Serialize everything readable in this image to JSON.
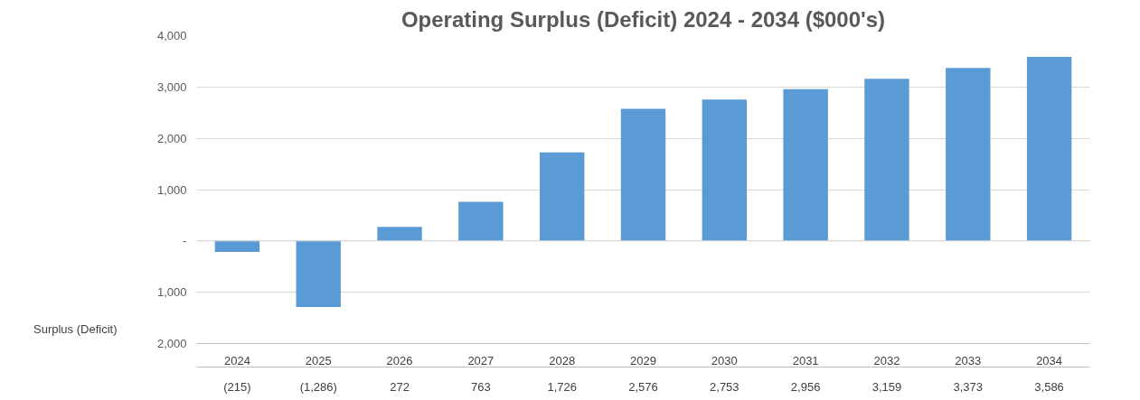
{
  "chart_data": {
    "type": "bar",
    "title": "Operating Surplus (Deficit) 2024 - 2034 ($000's)",
    "categories": [
      "2024",
      "2025",
      "2026",
      "2027",
      "2028",
      "2029",
      "2030",
      "2031",
      "2032",
      "2033",
      "2034"
    ],
    "series": [
      {
        "name": "Surplus (Deficit)",
        "color": "#5b9bd5",
        "values": [
          -215,
          -1286,
          272,
          763,
          1726,
          2576,
          2753,
          2956,
          3159,
          3373,
          3586
        ],
        "value_labels": [
          "(215)",
          "(1,286)",
          "272",
          "763",
          "1,726",
          "2,576",
          "2,753",
          "2,956",
          "3,159",
          "3,373",
          "3,586"
        ]
      }
    ],
    "ylim": [
      -2000,
      4000
    ],
    "yticks": [
      {
        "value": -2000,
        "label": "2,000"
      },
      {
        "value": -1000,
        "label": "1,000"
      },
      {
        "value": 0,
        "label": "-"
      },
      {
        "value": 1000,
        "label": "1,000"
      },
      {
        "value": 2000,
        "label": "2,000"
      },
      {
        "value": 3000,
        "label": "3,000"
      },
      {
        "value": 4000,
        "label": "4,000"
      }
    ],
    "grid": "y",
    "legend": "bottom left"
  }
}
